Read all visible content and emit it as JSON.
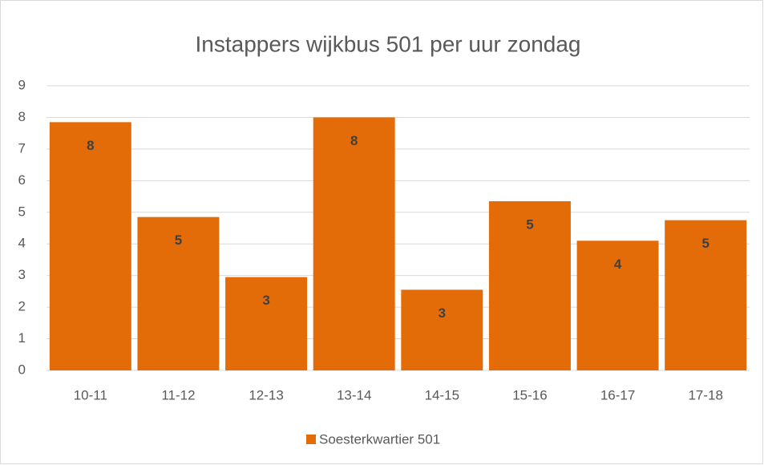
{
  "chart_data": {
    "type": "bar",
    "title": "Instappers wijkbus 501 per uur zondag",
    "categories": [
      "10-11",
      "11-12",
      "12-13",
      "13-14",
      "14-15",
      "15-16",
      "16-17",
      "17-18"
    ],
    "series": [
      {
        "name": "Soesterkwartier 501",
        "color": "#e36c09",
        "values": [
          7.85,
          4.85,
          2.95,
          8.0,
          2.55,
          5.35,
          4.1,
          4.75
        ],
        "value_labels": [
          "8",
          "5",
          "3",
          "8",
          "3",
          "5",
          "4",
          "5"
        ]
      }
    ],
    "ylim": [
      0,
      9
    ],
    "yticks": [
      0,
      1,
      2,
      3,
      4,
      5,
      6,
      7,
      8,
      9
    ],
    "grid": true,
    "legend": "bottom"
  }
}
